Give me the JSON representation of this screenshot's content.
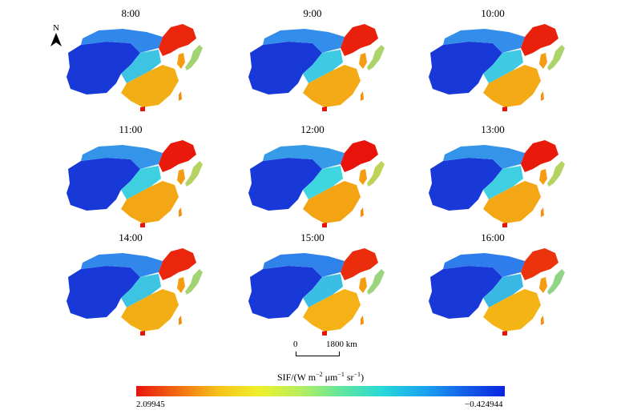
{
  "north_label": "N",
  "panels": [
    {
      "label": "8:00",
      "blue_mix": 0.15
    },
    {
      "label": "9:00",
      "blue_mix": 0.1
    },
    {
      "label": "10:00",
      "blue_mix": 0.1
    },
    {
      "label": "11:00",
      "blue_mix": 0.05
    },
    {
      "label": "12:00",
      "blue_mix": 0.0
    },
    {
      "label": "13:00",
      "blue_mix": 0.05
    },
    {
      "label": "14:00",
      "blue_mix": 0.15
    },
    {
      "label": "15:00",
      "blue_mix": 0.2
    },
    {
      "label": "16:00",
      "blue_mix": 0.25
    }
  ],
  "scalebar": {
    "zero_label": "0",
    "end_label": "1800 km"
  },
  "legend": {
    "title_prefix": "SIF/(W m",
    "sup1": "−2",
    "mid1": " μm",
    "sup2": "−1",
    "mid2": " sr",
    "sup3": "−1",
    "suffix": ")",
    "min_label": "2.09945",
    "max_label": "−0.424944"
  },
  "colors": {
    "high": "#e8140c",
    "orange": "#f4900f",
    "yellow": "#f5d21c",
    "cyan": "#3fd6e0",
    "blue": "#2a5ef0",
    "deep_blue": "#0c20c8"
  }
}
